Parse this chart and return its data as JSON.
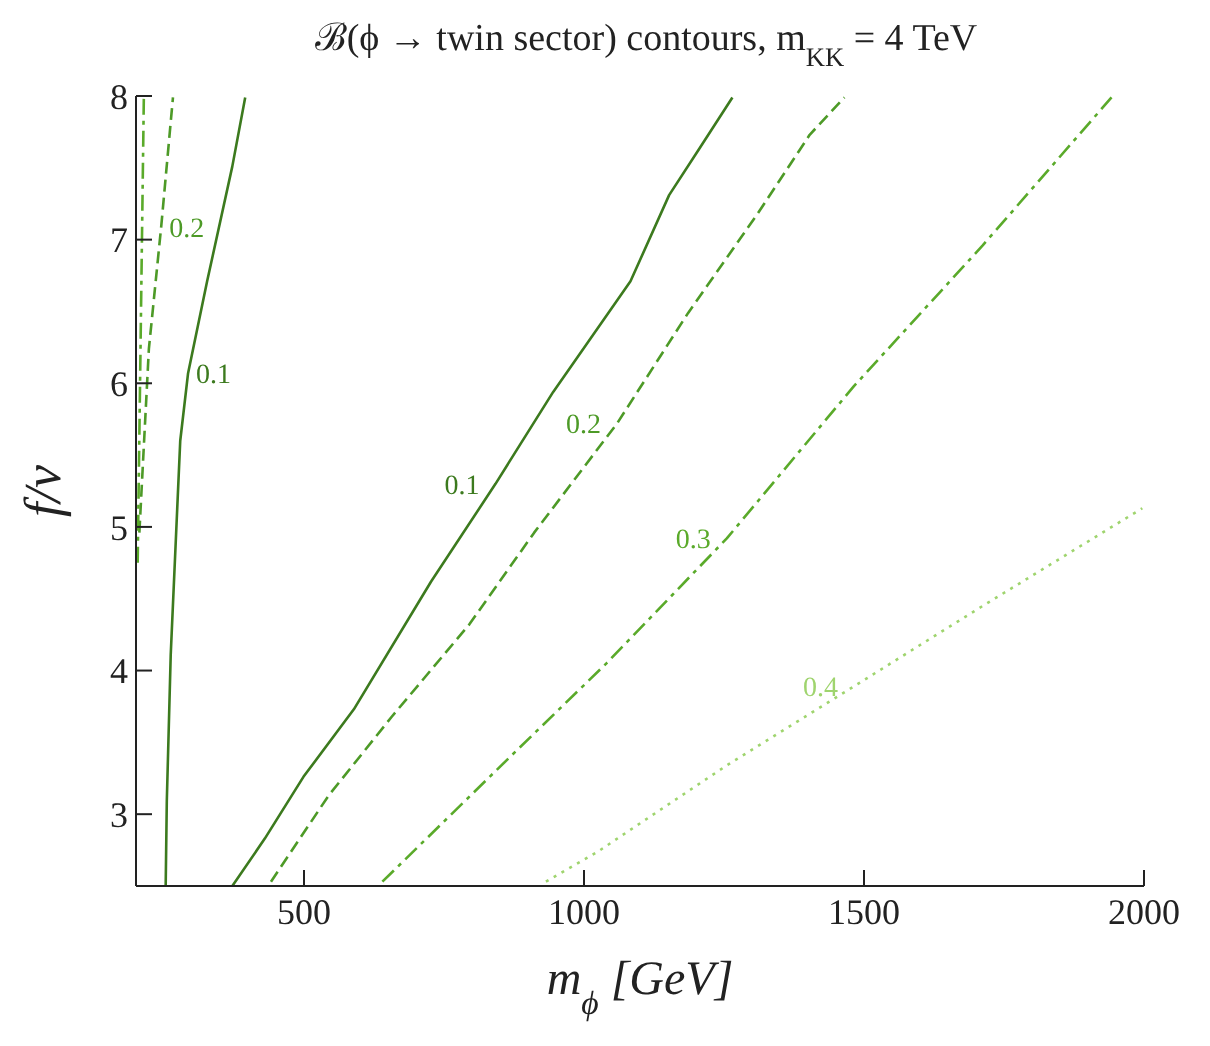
{
  "chart_data": {
    "type": "line",
    "title": "ℬ(ϕ → twin sector) contours,  m$_{KK}$ = 4 TeV",
    "xlabel": "m$_{ϕ}$ [GeV]",
    "ylabel": "f/v",
    "xlim": [
      200,
      2000
    ],
    "xticks": [
      500,
      1000,
      1500,
      2000
    ],
    "ylim": [
      2.5,
      8
    ],
    "yticks": [
      3,
      4,
      5,
      6,
      7,
      8
    ],
    "grid": false,
    "legend": false,
    "marker": "none",
    "series": [
      {
        "name": "0.1",
        "color": "#3c7a1e",
        "line_style": "solid",
        "x": [
          372,
          430,
          499,
          589,
          727,
          842,
          945,
          1083,
          1152,
          1207,
          1265
        ],
        "values": [
          2.5,
          2.83,
          3.26,
          3.73,
          4.62,
          5.3,
          5.94,
          6.71,
          7.31,
          7.64,
          7.99
        ]
      },
      {
        "name": "0.1",
        "color": "#3c7a1e",
        "line_style": "solid",
        "x": [
          253,
          255,
          262,
          279,
          293,
          327,
          372,
          395
        ],
        "values": [
          2.5,
          3.09,
          4.11,
          5.6,
          6.07,
          6.71,
          7.51,
          7.99
        ]
      },
      {
        "name": "0.2",
        "color": "#4d9a27",
        "line_style": "dashed",
        "x": [
          441,
          544,
          657,
          795,
          911,
          1059,
          1186,
          1310,
          1403,
          1465
        ],
        "values": [
          2.53,
          3.13,
          3.68,
          4.32,
          4.96,
          5.72,
          6.49,
          7.18,
          7.73,
          7.99
        ]
      },
      {
        "name": "0.2",
        "color": "#4d9a27",
        "line_style": "dashed",
        "x": [
          206,
          223,
          245,
          266
        ],
        "values": [
          4.96,
          6.24,
          7.09,
          7.99
        ]
      },
      {
        "name": "0.3",
        "color": "#5aaa2a",
        "line_style": "dashdot",
        "x": [
          640,
          863,
          1040,
          1255,
          1482,
          1712,
          1942
        ],
        "values": [
          2.53,
          3.38,
          4.05,
          4.92,
          5.98,
          6.96,
          7.99
        ]
      },
      {
        "color": "#5aaa2a",
        "line_style": "dashdot",
        "x": [
          203,
          214
        ],
        "values": [
          4.75,
          7.99
        ]
      },
      {
        "name": "0.4",
        "color": "#9fd46e",
        "line_style": "dotted",
        "x": [
          932,
          1025,
          1255,
          1482,
          1712,
          1997
        ],
        "values": [
          2.53,
          2.74,
          3.34,
          3.89,
          4.45,
          5.13
        ]
      }
    ]
  }
}
